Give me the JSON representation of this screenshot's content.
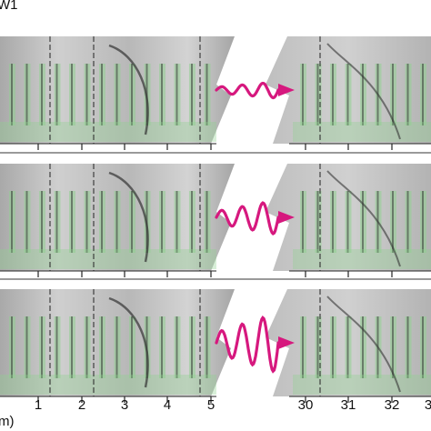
{
  "panel_label": "W1",
  "axis_unit_label": "m)",
  "ticks_left": [
    "1",
    "2",
    "3",
    "4",
    "5"
  ],
  "ticks_right": [
    "30",
    "31",
    "32",
    "3"
  ],
  "colors": {
    "wave": "#d6187e",
    "fin_green": "#8fd08f",
    "dash": "#222222",
    "separator": "#9a9a9a",
    "bg_gray": "#bdbdbd"
  },
  "rows": [
    {
      "name": "row-1",
      "wave_strength": "low"
    },
    {
      "name": "row-2",
      "wave_strength": "medium"
    },
    {
      "name": "row-3",
      "wave_strength": "high"
    }
  ]
}
